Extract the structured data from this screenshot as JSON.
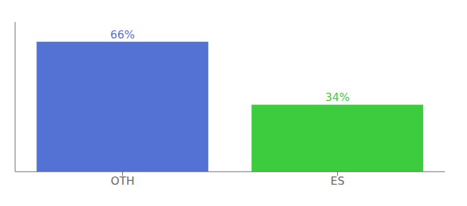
{
  "chart_data": {
    "type": "bar",
    "categories": [
      "OTH",
      "ES"
    ],
    "values": [
      66,
      34
    ],
    "value_labels": [
      "66%",
      "34%"
    ],
    "colors": [
      "#5472d3",
      "#3dcc3d"
    ],
    "ylim": [
      0,
      76
    ],
    "data_labels": true,
    "tick_labels": "x",
    "grid": false
  }
}
